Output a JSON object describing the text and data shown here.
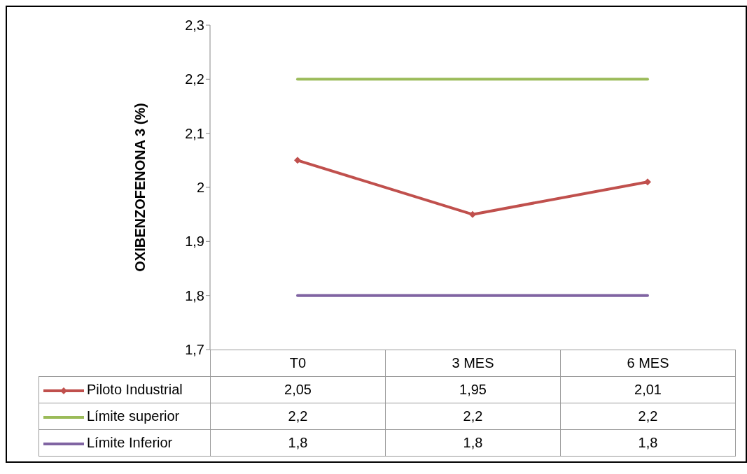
{
  "chart_data": {
    "type": "line",
    "ylabel": "OXIBENZOFENONA 3 (%)",
    "categories": [
      "T0",
      "3 MES",
      "6 MES"
    ],
    "series": [
      {
        "name": "Piloto Industrial",
        "color": "#c0504d",
        "marker": "diamond",
        "values": [
          2.05,
          1.95,
          2.01
        ],
        "value_labels": [
          "2,05",
          "1,95",
          "2,01"
        ]
      },
      {
        "name": "Límite superior",
        "color": "#9bbb59",
        "marker": "none",
        "values": [
          2.2,
          2.2,
          2.2
        ],
        "value_labels": [
          "2,2",
          "2,2",
          "2,2"
        ]
      },
      {
        "name": "Límite Inferior",
        "color": "#8064a2",
        "marker": "none",
        "values": [
          1.8,
          1.8,
          1.8
        ],
        "value_labels": [
          "1,8",
          "1,8",
          "1,8"
        ]
      }
    ],
    "ylim": [
      1.7,
      2.3
    ],
    "yticks": [
      {
        "value": 1.7,
        "label": "1,7"
      },
      {
        "value": 1.8,
        "label": "1,8"
      },
      {
        "value": 1.9,
        "label": "1,9"
      },
      {
        "value": 2,
        "label": "2"
      },
      {
        "value": 2.1,
        "label": "2,1"
      },
      {
        "value": 2.2,
        "label": "2,2"
      },
      {
        "value": 2.3,
        "label": "2,3"
      }
    ],
    "grid": false,
    "legend": "bottom"
  }
}
